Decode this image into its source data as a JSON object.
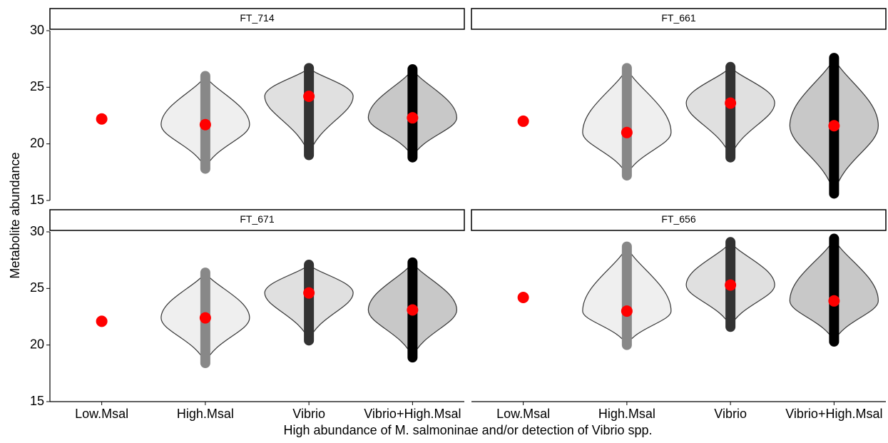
{
  "chart_data": {
    "type": "violin",
    "x_label": "High abundance of M. salmoninae and/or detection of Vibrio spp.",
    "y_label": "Metabolite abundance",
    "categories": [
      "Low.Msal",
      "High.Msal",
      "Vibrio",
      "Vibrio+High.Msal"
    ],
    "fill_colors": [
      "#f5f5f5",
      "#efefef",
      "#e0e0e0",
      "#c8c8c8"
    ],
    "point_colors": [
      "#888888",
      "#888888",
      "#333333",
      "#000000"
    ],
    "mean_color": "#ff0000",
    "ylim": [
      15,
      30
    ],
    "yticks": [
      15,
      20,
      25,
      30
    ],
    "panels": [
      {
        "title": "FT_714",
        "mean": [
          22.2,
          21.7,
          24.2,
          22.3
        ],
        "min": [
          null,
          17.8,
          19.0,
          18.8
        ],
        "max": [
          null,
          26.0,
          26.7,
          26.6
        ]
      },
      {
        "title": "FT_661",
        "mean": [
          22.0,
          21.0,
          23.6,
          21.6
        ],
        "min": [
          null,
          17.2,
          18.8,
          15.6
        ],
        "max": [
          null,
          26.7,
          26.8,
          27.6
        ]
      },
      {
        "title": "FT_671",
        "mean": [
          22.1,
          22.4,
          24.6,
          23.1
        ],
        "min": [
          null,
          18.4,
          20.4,
          18.9
        ],
        "max": [
          null,
          26.4,
          27.1,
          27.3
        ]
      },
      {
        "title": "FT_656",
        "mean": [
          24.2,
          23.0,
          25.3,
          23.9
        ],
        "min": [
          null,
          20.0,
          21.6,
          20.3
        ],
        "max": [
          null,
          28.7,
          29.1,
          29.4
        ]
      }
    ]
  }
}
